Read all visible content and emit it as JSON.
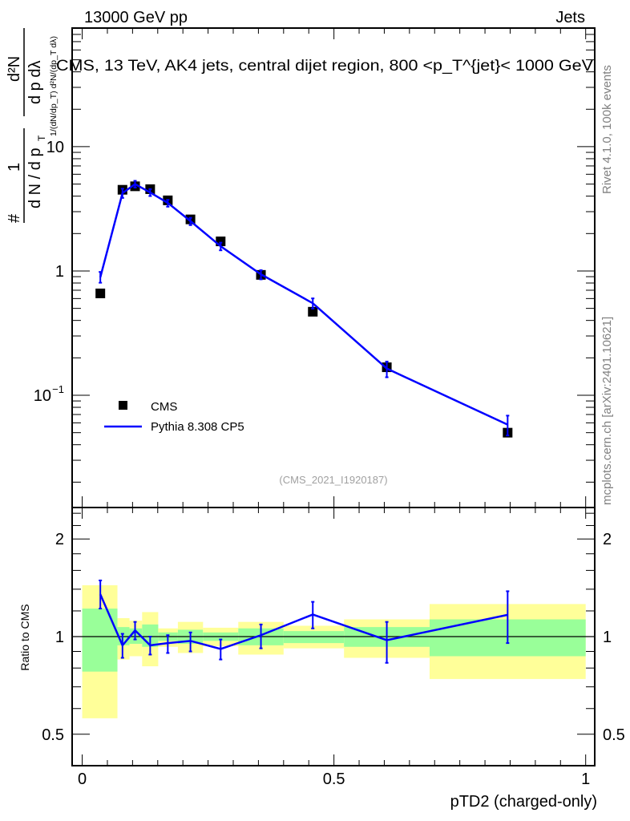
{
  "header": {
    "left": "13000 GeV pp",
    "right": "Jets"
  },
  "side_text": {
    "rivet": "Rivet 4.1.0,  100k events",
    "mcplots": "mcplots.cern.ch [arXiv:2401.10621]"
  },
  "colors": {
    "data": "#000000",
    "mc": "#0000ff",
    "band_stat": "#99ff99",
    "band_total": "#ffff99"
  },
  "chart_data": [
    {
      "type": "scatter",
      "title": "CMS, 13 TeV, AK4 jets, central dijet region, 800 <p_T^{jet}< 1000 GeV",
      "ylabel": "1/(dN/dp_T) d²N/(dp_T dλ)",
      "ylabel_parts": {
        "num": "1",
        "den": "d N / d p",
        "num2": "d²N",
        "den2": "d p  dλ",
        "sub": "T",
        "hash": "#"
      },
      "yscale": "log",
      "ylim": [
        0.0125,
        90
      ],
      "xlim": [
        -0.02,
        1.018
      ],
      "yticks": [
        {
          "v": 10,
          "label": "10"
        },
        {
          "v": 1,
          "label": "1"
        },
        {
          "v": 0.1,
          "label": "10",
          "exp": "−1"
        }
      ],
      "watermark": "(CMS_2021_I1920187)",
      "legend": {
        "position": "bottom-left",
        "entries": [
          "CMS",
          "Pythia 8.308 CP5"
        ]
      },
      "x": [
        0.036,
        0.08,
        0.105,
        0.135,
        0.17,
        0.215,
        0.275,
        0.355,
        0.458,
        0.605,
        0.845
      ],
      "series": [
        {
          "name": "CMS",
          "marker": "square",
          "values": [
            0.66,
            4.5,
            4.8,
            4.55,
            3.7,
            2.6,
            1.73,
            0.93,
            0.47,
            0.168,
            0.05
          ]
        },
        {
          "name": "Pythia 8.308 CP5",
          "line": true,
          "values": [
            0.89,
            4.23,
            5.0,
            4.28,
            3.53,
            2.52,
            1.58,
            0.94,
            0.55,
            0.164,
            0.058
          ]
        }
      ]
    },
    {
      "type": "line",
      "ylabel": "Ratio to CMS",
      "xlabel": "pTD2 (charged-only)",
      "yscale": "log",
      "ylim": [
        0.4,
        2.5
      ],
      "xlim": [
        -0.02,
        1.018
      ],
      "xticks": [
        {
          "v": 0,
          "label": "0"
        },
        {
          "v": 0.5,
          "label": "0.5"
        },
        {
          "v": 1,
          "label": "1"
        }
      ],
      "yticks": [
        {
          "v": 2,
          "label": "2"
        },
        {
          "v": 1,
          "label": "1"
        },
        {
          "v": 0.5,
          "label": "0.5"
        }
      ],
      "bands": {
        "edges": [
          0,
          0.07,
          0.094,
          0.119,
          0.151,
          0.19,
          0.24,
          0.31,
          0.4,
          0.52,
          0.69,
          1.0
        ],
        "stat_hi": [
          1.22,
          1.07,
          1.06,
          1.09,
          1.03,
          1.05,
          1.03,
          1.06,
          1.04,
          1.07,
          1.13
        ],
        "stat_lo": [
          0.78,
          0.94,
          0.95,
          0.93,
          0.97,
          0.95,
          0.97,
          0.94,
          0.955,
          0.93,
          0.87
        ],
        "total_hi": [
          1.44,
          1.14,
          1.12,
          1.19,
          1.06,
          1.11,
          1.065,
          1.11,
          1.08,
          1.13,
          1.26
        ],
        "total_lo": [
          0.56,
          0.85,
          0.87,
          0.81,
          0.93,
          0.89,
          0.935,
          0.88,
          0.92,
          0.86,
          0.74
        ]
      },
      "x": [
        0.036,
        0.08,
        0.105,
        0.135,
        0.17,
        0.215,
        0.275,
        0.355,
        0.458,
        0.605,
        0.845
      ],
      "series": [
        {
          "name": "Pythia 8.308 CP5",
          "values": [
            1.35,
            0.94,
            1.045,
            0.94,
            0.955,
            0.97,
            0.916,
            1.01,
            1.17,
            0.975,
            1.167
          ],
          "err_hi": [
            1.49,
            1.02,
            1.11,
            1.0,
            1.01,
            1.03,
            0.98,
            1.09,
            1.28,
            1.11,
            1.38
          ],
          "err_lo": [
            1.22,
            0.86,
            0.98,
            0.88,
            0.89,
            0.9,
            0.85,
            0.92,
            1.06,
            0.83,
            0.955
          ]
        }
      ]
    }
  ]
}
